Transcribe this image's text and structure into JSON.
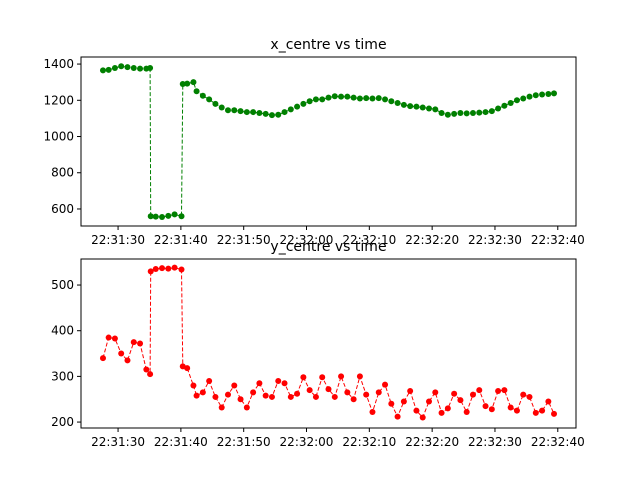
{
  "chart_data": [
    {
      "type": "line",
      "title": "x_centre vs time",
      "x": [
        "22:31:27.6",
        "22:31:28.5",
        "22:31:29.5",
        "22:31:30.5",
        "22:31:31.5",
        "22:31:32.5",
        "22:31:33.5",
        "22:31:34.5",
        "22:31:35.1",
        "22:31:35.2",
        "22:31:36.0",
        "22:31:37.0",
        "22:31:38.0",
        "22:31:39.0",
        "22:31:40.1",
        "22:31:40.3",
        "22:31:41.0",
        "22:31:42.0",
        "22:31:42.5",
        "22:31:43.5",
        "22:31:44.5",
        "22:31:45.5",
        "22:31:46.5",
        "22:31:47.5",
        "22:31:48.5",
        "22:31:49.5",
        "22:31:50.5",
        "22:31:51.5",
        "22:31:52.5",
        "22:31:53.5",
        "22:31:54.5",
        "22:31:55.5",
        "22:31:56.5",
        "22:31:57.5",
        "22:31:58.5",
        "22:31:59.5",
        "22:32:00.5",
        "22:32:01.5",
        "22:32:02.5",
        "22:32:03.5",
        "22:32:04.5",
        "22:32:05.5",
        "22:32:06.5",
        "22:32:07.5",
        "22:32:08.5",
        "22:32:09.5",
        "22:32:10.5",
        "22:32:11.5",
        "22:32:12.5",
        "22:32:13.5",
        "22:32:14.5",
        "22:32:15.5",
        "22:32:16.5",
        "22:32:17.5",
        "22:32:18.5",
        "22:32:19.5",
        "22:32:20.5",
        "22:32:21.5",
        "22:32:22.5",
        "22:32:23.5",
        "22:32:24.5",
        "22:32:25.5",
        "22:32:26.5",
        "22:32:27.5",
        "22:32:28.5",
        "22:32:29.5",
        "22:32:30.5",
        "22:32:31.5",
        "22:32:32.5",
        "22:32:33.5",
        "22:32:34.5",
        "22:32:35.5",
        "22:32:36.5",
        "22:32:37.5",
        "22:32:38.5",
        "22:32:39.4"
      ],
      "series": [
        {
          "color": "#008000",
          "values": [
            1365,
            1368,
            1378,
            1388,
            1383,
            1378,
            1375,
            1375,
            1378,
            560,
            558,
            556,
            562,
            570,
            560,
            1290,
            1292,
            1300,
            1250,
            1225,
            1205,
            1180,
            1160,
            1145,
            1145,
            1140,
            1135,
            1135,
            1130,
            1125,
            1118,
            1120,
            1135,
            1150,
            1165,
            1180,
            1195,
            1205,
            1205,
            1215,
            1222,
            1220,
            1220,
            1215,
            1210,
            1212,
            1210,
            1212,
            1205,
            1195,
            1185,
            1175,
            1168,
            1165,
            1160,
            1155,
            1150,
            1130,
            1120,
            1125,
            1130,
            1128,
            1130,
            1132,
            1135,
            1140,
            1155,
            1170,
            1185,
            1200,
            1210,
            1220,
            1228,
            1232,
            1235,
            1238
          ]
        }
      ],
      "xlim": [
        "22:31:24.1",
        "22:32:42.9"
      ],
      "xticks": [
        "22:31:30",
        "22:31:40",
        "22:31:50",
        "22:32:00",
        "22:32:10",
        "22:32:20",
        "22:32:30",
        "22:32:40"
      ],
      "ylim": [
        506,
        1439
      ],
      "yticks": [
        600,
        800,
        1000,
        1200,
        1400
      ]
    },
    {
      "type": "line",
      "title": "y_centre vs time",
      "x": [
        "22:31:27.6",
        "22:31:28.5",
        "22:31:29.5",
        "22:31:30.5",
        "22:31:31.5",
        "22:31:32.5",
        "22:31:33.5",
        "22:31:34.5",
        "22:31:35.1",
        "22:31:35.2",
        "22:31:36.0",
        "22:31:37.0",
        "22:31:38.0",
        "22:31:39.0",
        "22:31:40.1",
        "22:31:40.3",
        "22:31:41.0",
        "22:31:42.0",
        "22:31:42.5",
        "22:31:43.5",
        "22:31:44.5",
        "22:31:45.5",
        "22:31:46.5",
        "22:31:47.5",
        "22:31:48.5",
        "22:31:49.5",
        "22:31:50.5",
        "22:31:51.5",
        "22:31:52.5",
        "22:31:53.5",
        "22:31:54.5",
        "22:31:55.5",
        "22:31:56.5",
        "22:31:57.5",
        "22:31:58.5",
        "22:31:59.5",
        "22:32:00.5",
        "22:32:01.5",
        "22:32:02.5",
        "22:32:03.5",
        "22:32:04.5",
        "22:32:05.5",
        "22:32:06.5",
        "22:32:07.5",
        "22:32:08.5",
        "22:32:09.5",
        "22:32:10.5",
        "22:32:11.5",
        "22:32:12.5",
        "22:32:13.5",
        "22:32:14.5",
        "22:32:15.5",
        "22:32:16.5",
        "22:32:17.5",
        "22:32:18.5",
        "22:32:19.5",
        "22:32:20.5",
        "22:32:21.5",
        "22:32:22.5",
        "22:32:23.5",
        "22:32:24.5",
        "22:32:25.5",
        "22:32:26.5",
        "22:32:27.5",
        "22:32:28.5",
        "22:32:29.5",
        "22:32:30.5",
        "22:32:31.5",
        "22:32:32.5",
        "22:32:33.5",
        "22:32:34.5",
        "22:32:35.5",
        "22:32:36.5",
        "22:32:37.5",
        "22:32:38.5",
        "22:32:39.4"
      ],
      "series": [
        {
          "color": "#ff0000",
          "values": [
            340,
            385,
            383,
            350,
            335,
            375,
            372,
            315,
            305,
            530,
            535,
            537,
            536,
            538,
            534,
            322,
            318,
            280,
            258,
            265,
            290,
            255,
            232,
            260,
            280,
            250,
            232,
            265,
            285,
            258,
            255,
            290,
            285,
            255,
            262,
            298,
            270,
            255,
            298,
            272,
            255,
            300,
            265,
            250,
            300,
            260,
            222,
            265,
            282,
            240,
            212,
            245,
            268,
            225,
            210,
            245,
            265,
            220,
            230,
            262,
            248,
            222,
            260,
            270,
            235,
            228,
            268,
            270,
            232,
            225,
            260,
            255,
            220,
            225,
            245,
            218
          ]
        }
      ],
      "xlim": [
        "22:31:24.1",
        "22:32:42.9"
      ],
      "xticks": [
        "22:31:30",
        "22:31:40",
        "22:31:50",
        "22:32:00",
        "22:32:10",
        "22:32:20",
        "22:32:30",
        "22:32:40"
      ],
      "ylim": [
        187,
        557
      ],
      "yticks": [
        200,
        300,
        400,
        500
      ]
    }
  ]
}
